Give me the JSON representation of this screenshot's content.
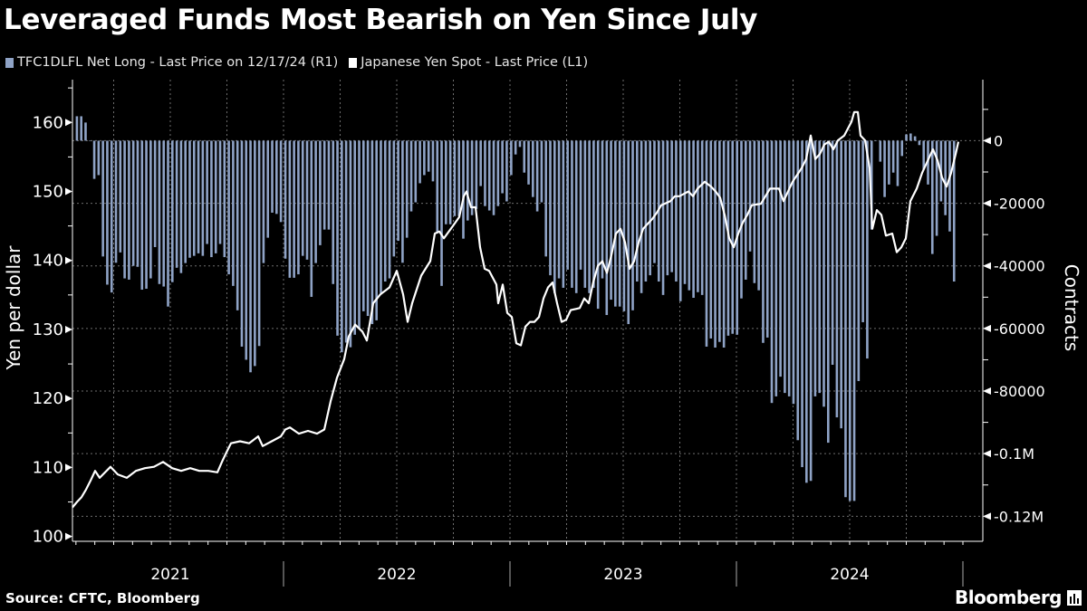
{
  "title": "Leveraged Funds Most Bearish on Yen Since July",
  "source": "Source: CFTC, Bloomberg",
  "logo": "Bloomberg",
  "colors": {
    "background": "#000000",
    "bars": "#8fa3c6",
    "line": "#ffffff",
    "grid": "#6e6e6e"
  },
  "chart_data": {
    "type": "bar+line",
    "title": "Leveraged Funds Most Bearish on Yen Since July",
    "legend": [
      {
        "name": "TFC1DLFL Net Long - Last Price on 12/17/24 (R1)",
        "color": "#8fa3c6",
        "kind": "bar"
      },
      {
        "name": "Japanese Yen Spot - Last Price (L1)",
        "color": "#ffffff",
        "kind": "line"
      }
    ],
    "legend_placement": "top-left",
    "grid": true,
    "x_axis": {
      "ticks": [
        "2021",
        "2022",
        "2023",
        "2024"
      ],
      "range": [
        2021.07,
        2024.99
      ]
    },
    "left_axis": {
      "label": "Yen per dollar",
      "ticks": [
        100,
        110,
        120,
        130,
        140,
        150,
        160
      ],
      "tick_labels": [
        "100",
        "110",
        "120",
        "130",
        "140",
        "150",
        "160"
      ],
      "range": [
        99.3,
        166.2
      ]
    },
    "right_axis": {
      "label": "Contracts",
      "ticks": [
        0,
        -20000,
        -40000,
        -60000,
        -80000,
        -100000,
        -120000
      ],
      "tick_labels": [
        "0",
        "-20000",
        "-40000",
        "-60000",
        "-80000",
        "-0.1M",
        "-0.12M"
      ],
      "range": [
        -128000,
        19500
      ]
    },
    "bars": {
      "name": "TFC1DLFL Net Long",
      "frequency": "weekly",
      "end_date": "2024-12-17",
      "values": [
        7800,
        7800,
        5800,
        0,
        -12200,
        -11000,
        -37000,
        -46000,
        -48500,
        -39000,
        -35700,
        -44000,
        -44400,
        -40000,
        -40300,
        -47600,
        -47300,
        -44000,
        -34000,
        -45800,
        -46600,
        -53000,
        -45200,
        -40600,
        -42300,
        -39100,
        -37400,
        -36800,
        -36000,
        -36800,
        -33000,
        -37200,
        -36000,
        -33000,
        -37200,
        -42700,
        -46400,
        -54200,
        -65800,
        -70000,
        -74000,
        -72000,
        -65600,
        -39100,
        -31000,
        -23000,
        -23400,
        -26000,
        -37700,
        -43800,
        -43800,
        -42700,
        -36800,
        -38000,
        -49900,
        -39100,
        -33400,
        -28400,
        -28400,
        -45800,
        -62300,
        -67600,
        -64500,
        -66000,
        -62000,
        -60000,
        -54500,
        -56000,
        -58600,
        -57400,
        -48700,
        -45000,
        -44000,
        -37000,
        -32000,
        -39000,
        -31000,
        -22600,
        -19700,
        -13600,
        -11000,
        -9900,
        -13000,
        -29600,
        -46400,
        -26700,
        -26700,
        -24100,
        -24100,
        -31300,
        -25500,
        -23800,
        -21800,
        -14500,
        -20900,
        -22300,
        -23800,
        -20900,
        -16800,
        -19400,
        -11000,
        -4400,
        -2000,
        -10200,
        -14000,
        -18000,
        -22600,
        -19700,
        -37000,
        -43000,
        -48700,
        -44000,
        -47000,
        -41200,
        -47000,
        -48700,
        -41200,
        -47000,
        -48700,
        -47000,
        -53700,
        -44000,
        -55700,
        -50800,
        -53000,
        -53000,
        -54500,
        -58600,
        -54200,
        -45000,
        -48700,
        -45000,
        -43000,
        -39100,
        -45000,
        -49300,
        -43000,
        -42000,
        -45000,
        -51300,
        -45800,
        -47800,
        -50200,
        -48400,
        -49300,
        -65800,
        -63200,
        -66100,
        -64300,
        -66100,
        -62300,
        -61700,
        -62000,
        -50400,
        -44400,
        -35400,
        -45500,
        -47800,
        -64600,
        -62900,
        -83800,
        -81700,
        -75400,
        -80600,
        -81700,
        -84100,
        -95700,
        -104300,
        -109300,
        -108700,
        -81700,
        -80600,
        -85000,
        -96500,
        -71600,
        -88400,
        -91900,
        -113900,
        -115100,
        -115100,
        -76800,
        -58000,
        -69600,
        -28400,
        0,
        -6700,
        -18000,
        -14000,
        -10200,
        -14500,
        -4900,
        2000,
        2300,
        1400,
        -1400,
        -9200,
        -14000,
        -36200,
        -30400,
        -19400,
        -23800,
        -29000,
        -45000
      ]
    },
    "line": {
      "name": "Japanese Yen Spot",
      "points": [
        [
          2021.068,
          104.2
        ],
        [
          2021.088,
          105.0
        ],
        [
          2021.108,
          105.7
        ],
        [
          2021.128,
          106.8
        ],
        [
          2021.148,
          108.1
        ],
        [
          2021.168,
          109.5
        ],
        [
          2021.188,
          108.5
        ],
        [
          2021.236,
          110.1
        ],
        [
          2021.268,
          109.0
        ],
        [
          2021.308,
          108.5
        ],
        [
          2021.348,
          109.5
        ],
        [
          2021.388,
          109.9
        ],
        [
          2021.428,
          110.1
        ],
        [
          2021.468,
          110.8
        ],
        [
          2021.508,
          109.9
        ],
        [
          2021.548,
          109.5
        ],
        [
          2021.588,
          109.9
        ],
        [
          2021.628,
          109.5
        ],
        [
          2021.668,
          109.5
        ],
        [
          2021.708,
          109.3
        ],
        [
          2021.728,
          110.8
        ],
        [
          2021.748,
          112.2
        ],
        [
          2021.768,
          113.5
        ],
        [
          2021.808,
          113.8
        ],
        [
          2021.848,
          113.5
        ],
        [
          2021.888,
          114.5
        ],
        [
          2021.908,
          113.1
        ],
        [
          2021.948,
          113.8
        ],
        [
          2021.988,
          114.5
        ],
        [
          2022.008,
          115.5
        ],
        [
          2022.028,
          115.8
        ],
        [
          2022.068,
          114.9
        ],
        [
          2022.108,
          115.3
        ],
        [
          2022.148,
          114.9
        ],
        [
          2022.18,
          115.5
        ],
        [
          2022.208,
          119.6
        ],
        [
          2022.236,
          123.0
        ],
        [
          2022.268,
          125.7
        ],
        [
          2022.288,
          129.0
        ],
        [
          2022.316,
          130.7
        ],
        [
          2022.348,
          129.7
        ],
        [
          2022.368,
          128.4
        ],
        [
          2022.396,
          133.8
        ],
        [
          2022.428,
          135.1
        ],
        [
          2022.468,
          136.1
        ],
        [
          2022.5,
          138.5
        ],
        [
          2022.528,
          135.1
        ],
        [
          2022.548,
          131.1
        ],
        [
          2022.568,
          133.8
        ],
        [
          2022.608,
          137.8
        ],
        [
          2022.648,
          139.9
        ],
        [
          2022.668,
          143.9
        ],
        [
          2022.688,
          144.2
        ],
        [
          2022.708,
          143.2
        ],
        [
          2022.748,
          145.0
        ],
        [
          2022.776,
          146.3
        ],
        [
          2022.796,
          149.3
        ],
        [
          2022.808,
          150.0
        ],
        [
          2022.828,
          147.7
        ],
        [
          2022.848,
          147.7
        ],
        [
          2022.868,
          141.9
        ],
        [
          2022.888,
          138.8
        ],
        [
          2022.908,
          138.5
        ],
        [
          2022.94,
          136.5
        ],
        [
          2022.948,
          133.8
        ],
        [
          2022.968,
          136.5
        ],
        [
          2022.988,
          132.4
        ],
        [
          2023.008,
          131.8
        ],
        [
          2023.028,
          128.0
        ],
        [
          2023.048,
          127.7
        ],
        [
          2023.068,
          130.4
        ],
        [
          2023.088,
          131.1
        ],
        [
          2023.108,
          131.1
        ],
        [
          2023.128,
          131.8
        ],
        [
          2023.148,
          134.5
        ],
        [
          2023.168,
          136.1
        ],
        [
          2023.188,
          136.8
        ],
        [
          2023.208,
          133.8
        ],
        [
          2023.228,
          131.1
        ],
        [
          2023.248,
          131.4
        ],
        [
          2023.268,
          132.8
        ],
        [
          2023.308,
          133.1
        ],
        [
          2023.328,
          134.5
        ],
        [
          2023.348,
          133.8
        ],
        [
          2023.368,
          136.9
        ],
        [
          2023.388,
          139.2
        ],
        [
          2023.408,
          139.9
        ],
        [
          2023.428,
          138.2
        ],
        [
          2023.448,
          140.8
        ],
        [
          2023.468,
          143.9
        ],
        [
          2023.488,
          144.6
        ],
        [
          2023.508,
          142.6
        ],
        [
          2023.528,
          138.8
        ],
        [
          2023.548,
          139.9
        ],
        [
          2023.568,
          142.6
        ],
        [
          2023.588,
          144.6
        ],
        [
          2023.608,
          145.3
        ],
        [
          2023.628,
          146.0
        ],
        [
          2023.648,
          146.9
        ],
        [
          2023.668,
          148.0
        ],
        [
          2023.708,
          148.6
        ],
        [
          2023.728,
          149.3
        ],
        [
          2023.748,
          149.3
        ],
        [
          2023.788,
          150.0
        ],
        [
          2023.808,
          149.3
        ],
        [
          2023.828,
          150.4
        ],
        [
          2023.86,
          151.4
        ],
        [
          2023.888,
          150.7
        ],
        [
          2023.908,
          150.0
        ],
        [
          2023.928,
          149.1
        ],
        [
          2023.948,
          146.6
        ],
        [
          2023.968,
          143.2
        ],
        [
          2023.988,
          141.9
        ],
        [
          2024.008,
          143.9
        ],
        [
          2024.028,
          145.5
        ],
        [
          2024.048,
          146.6
        ],
        [
          2024.068,
          148.0
        ],
        [
          2024.108,
          148.2
        ],
        [
          2024.148,
          150.4
        ],
        [
          2024.188,
          150.4
        ],
        [
          2024.208,
          148.6
        ],
        [
          2024.248,
          151.4
        ],
        [
          2024.288,
          153.4
        ],
        [
          2024.308,
          154.7
        ],
        [
          2024.328,
          158.1
        ],
        [
          2024.348,
          154.7
        ],
        [
          2024.368,
          155.4
        ],
        [
          2024.388,
          156.8
        ],
        [
          2024.408,
          157.2
        ],
        [
          2024.428,
          156.1
        ],
        [
          2024.448,
          157.4
        ],
        [
          2024.476,
          158.1
        ],
        [
          2024.508,
          160.1
        ],
        [
          2024.52,
          161.5
        ],
        [
          2024.536,
          161.5
        ],
        [
          2024.548,
          158.1
        ],
        [
          2024.568,
          157.4
        ],
        [
          2024.588,
          153.4
        ],
        [
          2024.6,
          144.6
        ],
        [
          2024.62,
          147.3
        ],
        [
          2024.64,
          146.6
        ],
        [
          2024.66,
          143.6
        ],
        [
          2024.688,
          143.9
        ],
        [
          2024.708,
          141.2
        ],
        [
          2024.728,
          141.9
        ],
        [
          2024.748,
          143.2
        ],
        [
          2024.768,
          148.6
        ],
        [
          2024.796,
          150.4
        ],
        [
          2024.82,
          152.7
        ],
        [
          2024.848,
          154.7
        ],
        [
          2024.868,
          156.1
        ],
        [
          2024.888,
          154.5
        ],
        [
          2024.908,
          152.0
        ],
        [
          2024.928,
          150.7
        ],
        [
          2024.948,
          152.7
        ],
        [
          2024.968,
          155.4
        ],
        [
          2024.98,
          157.2
        ]
      ]
    }
  }
}
